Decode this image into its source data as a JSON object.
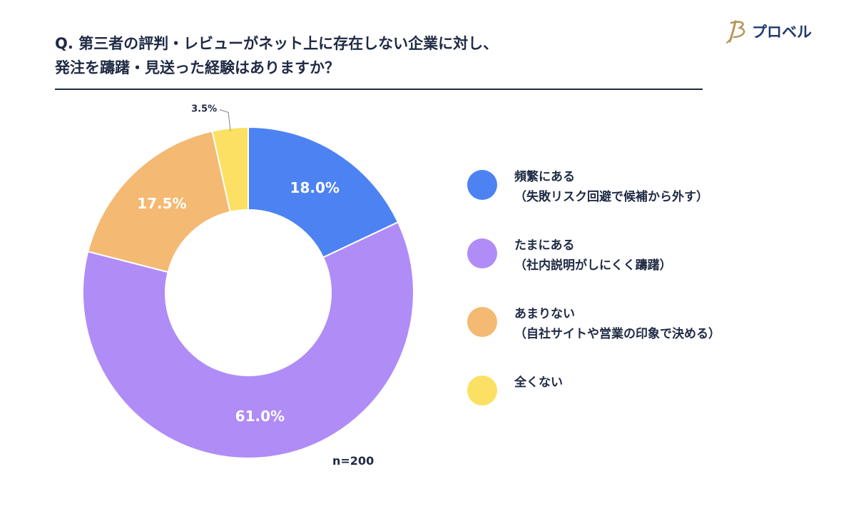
{
  "header": {
    "question_line1": "Q. 第三者の評判・レビューがネット上に存在しない企業に対し、",
    "question_line2": "発注を躊躇・見送った経験はありますか？"
  },
  "logo": {
    "text": "プロベル",
    "icon": "feather-b-logo-icon"
  },
  "sample_size": "n=200",
  "colors": {
    "title": "#1f2a44",
    "rule": "#1f2a44",
    "logo": "#1f3a6e"
  },
  "chart_data": {
    "type": "pie",
    "donut": true,
    "start_angle_deg": 0,
    "direction": "clockwise",
    "slices": [
      {
        "label_line1": "頻繁にある",
        "label_line2": "（失敗リスク回避で候補から外す）",
        "value": 18.0,
        "display": "18.0%",
        "color": "#4d82f3"
      },
      {
        "label_line1": "たまにある",
        "label_line2": "（社内説明がしにくく躊躇）",
        "value": 61.0,
        "display": "61.0%",
        "color": "#b08cf7"
      },
      {
        "label_line1": "あまりない",
        "label_line2": "（自社サイトや営業の印象で決める）",
        "value": 17.5,
        "display": "17.5%",
        "color": "#f4b972"
      },
      {
        "label_line1": "全くない",
        "label_line2": "",
        "value": 3.5,
        "display": "3.5%",
        "color": "#fbe064"
      }
    ]
  }
}
